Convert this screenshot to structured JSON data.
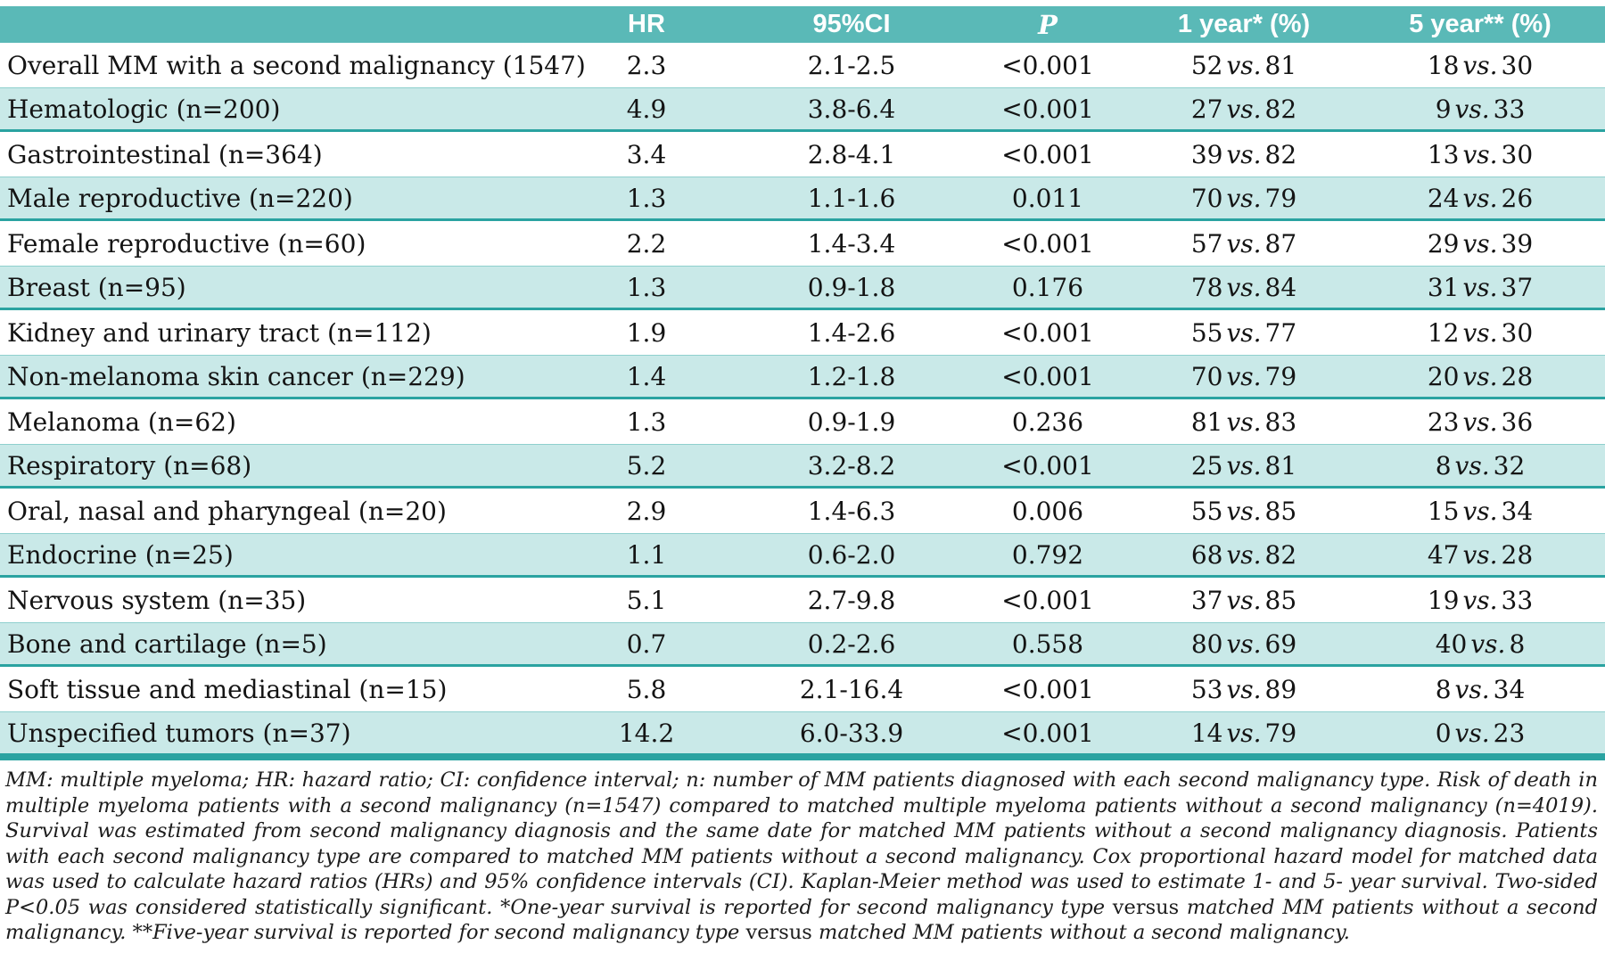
{
  "table": {
    "columns": [
      {
        "label": "HR"
      },
      {
        "label": "95%CI"
      },
      {
        "label": "P"
      },
      {
        "label": "1 year* (%)"
      },
      {
        "label": "5 year** (%)"
      }
    ],
    "vs_label": "vs.",
    "rows": [
      {
        "label": "Overall MM with a second malignancy (1547)",
        "hr": "2.3",
        "ci": "2.1-2.5",
        "p": "<0.001",
        "y1": [
          "52",
          "81"
        ],
        "y5": [
          "18",
          "30"
        ]
      },
      {
        "label": "Hematologic (n=200)",
        "hr": "4.9",
        "ci": "3.8-6.4",
        "p": "<0.001",
        "y1": [
          "27",
          "82"
        ],
        "y5": [
          "9",
          "33"
        ]
      },
      {
        "label": "Gastrointestinal (n=364)",
        "hr": "3.4",
        "ci": "2.8-4.1",
        "p": "<0.001",
        "y1": [
          "39",
          "82"
        ],
        "y5": [
          "13",
          "30"
        ]
      },
      {
        "label": "Male reproductive (n=220)",
        "hr": "1.3",
        "ci": "1.1-1.6",
        "p": "0.011",
        "y1": [
          "70",
          "79"
        ],
        "y5": [
          "24",
          "26"
        ]
      },
      {
        "label": "Female reproductive (n=60)",
        "hr": "2.2",
        "ci": "1.4-3.4",
        "p": "<0.001",
        "y1": [
          "57",
          "87"
        ],
        "y5": [
          "29",
          "39"
        ]
      },
      {
        "label": "Breast (n=95)",
        "hr": "1.3",
        "ci": "0.9-1.8",
        "p": "0.176",
        "y1": [
          "78",
          "84"
        ],
        "y5": [
          "31",
          "37"
        ]
      },
      {
        "label": "Kidney and urinary tract (n=112)",
        "hr": "1.9",
        "ci": "1.4-2.6",
        "p": "<0.001",
        "y1": [
          "55",
          "77"
        ],
        "y5": [
          "12",
          "30"
        ]
      },
      {
        "label": "Non-melanoma skin cancer (n=229)",
        "hr": "1.4",
        "ci": "1.2-1.8",
        "p": "<0.001",
        "y1": [
          "70",
          "79"
        ],
        "y5": [
          "20",
          "28"
        ]
      },
      {
        "label": "Melanoma (n=62)",
        "hr": "1.3",
        "ci": "0.9-1.9",
        "p": "0.236",
        "y1": [
          "81",
          "83"
        ],
        "y5": [
          "23",
          "36"
        ]
      },
      {
        "label": "Respiratory (n=68)",
        "hr": "5.2",
        "ci": "3.2-8.2",
        "p": "<0.001",
        "y1": [
          "25",
          "81"
        ],
        "y5": [
          "8",
          "32"
        ]
      },
      {
        "label": "Oral, nasal and pharyngeal (n=20)",
        "hr": "2.9",
        "ci": "1.4-6.3",
        "p": "0.006",
        "y1": [
          "55",
          "85"
        ],
        "y5": [
          "15",
          "34"
        ]
      },
      {
        "label": "Endocrine (n=25)",
        "hr": "1.1",
        "ci": "0.6-2.0",
        "p": "0.792",
        "y1": [
          "68",
          "82"
        ],
        "y5": [
          "47",
          "28"
        ]
      },
      {
        "label": "Nervous system (n=35)",
        "hr": "5.1",
        "ci": "2.7-9.8",
        "p": "<0.001",
        "y1": [
          "37",
          "85"
        ],
        "y5": [
          "19",
          "33"
        ]
      },
      {
        "label": "Bone and cartilage (n=5)",
        "hr": "0.7",
        "ci": "0.2-2.6",
        "p": "0.558",
        "y1": [
          "80",
          "69"
        ],
        "y5": [
          "40",
          "8"
        ]
      },
      {
        "label": "Soft tissue and mediastinal (n=15)",
        "hr": "5.8",
        "ci": "2.1-16.4",
        "p": "<0.001",
        "y1": [
          "53",
          "89"
        ],
        "y5": [
          "8",
          "34"
        ]
      },
      {
        "label": "Unspecified tumors (n=37)",
        "hr": "14.2",
        "ci": "6.0-33.9",
        "p": "<0.001",
        "y1": [
          "14",
          "79"
        ],
        "y5": [
          "0",
          "23"
        ]
      }
    ]
  },
  "footnote": {
    "segments": [
      {
        "style": "italic",
        "text": "MM: multiple myeloma; HR: hazard ratio; CI: confidence interval; n: number of MM patients diagnosed with each second malignancy type. Risk of death in multiple myeloma patients with a second malignancy (n=1547) compared to matched multiple myeloma patients without a second malignancy (n=4019). Survival was estimated from second malignancy diagnosis and the same date for matched MM patients without a second malignancy diagnosis. Patients with each second malignancy type are compared to matched MM patients without a second malignancy. Cox proportional hazard model for matched data was used to calculate hazard ratios (HRs) and 95% confidence intervals (CI). Kaplan-Meier method was used to estimate 1- and 5- year survival. Two-sided P<0.05 was considered statistically significant. *One-year survival is reported for second malignancy type "
      },
      {
        "style": "upright",
        "text": "versus "
      },
      {
        "style": "italic",
        "text": "matched MM patients without a second malignancy. **Five-year survival is reported for second malignancy type "
      },
      {
        "style": "upright",
        "text": "versus "
      },
      {
        "style": "italic",
        "text": "matched MM patients without a second malignancy."
      }
    ]
  },
  "colors": {
    "header_teal": "#5ab9b7",
    "row_light_teal": "#c9e9e8",
    "rule_dark_teal": "#2aa3a1",
    "header_text": "#ffffff",
    "body_text": "#141414"
  }
}
